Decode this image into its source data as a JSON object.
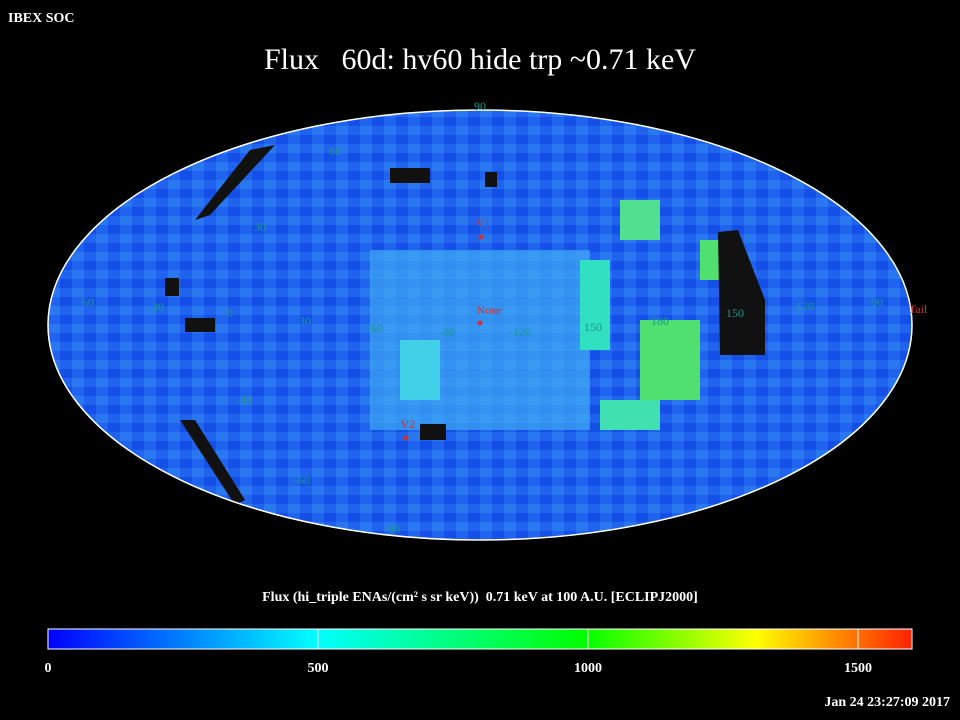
{
  "header": {
    "source": "IBEX SOC",
    "title": "Flux   60d: hv60 hide trp ~0.71 keV"
  },
  "map": {
    "grid_labels": [
      "90",
      "60",
      "30",
      "60",
      "30",
      "0",
      "30",
      "-60",
      "-90",
      "-120",
      "150",
      "180",
      "150",
      "120",
      "90",
      "-30",
      "-60",
      "-90"
    ],
    "markers": [
      "V1",
      "Nose",
      "V2",
      "Tail"
    ]
  },
  "colorbar": {
    "label": "Flux (hi_triple ENAs/(cm² s sr keV))  0.71 keV at 100 A.U. [ECLIPJ2000]",
    "clim": [
      0,
      1600
    ],
    "ticks": [
      0,
      500,
      1000,
      1500
    ]
  },
  "footer": {
    "timestamp": "Jan 24 23:27:09 2017"
  }
}
